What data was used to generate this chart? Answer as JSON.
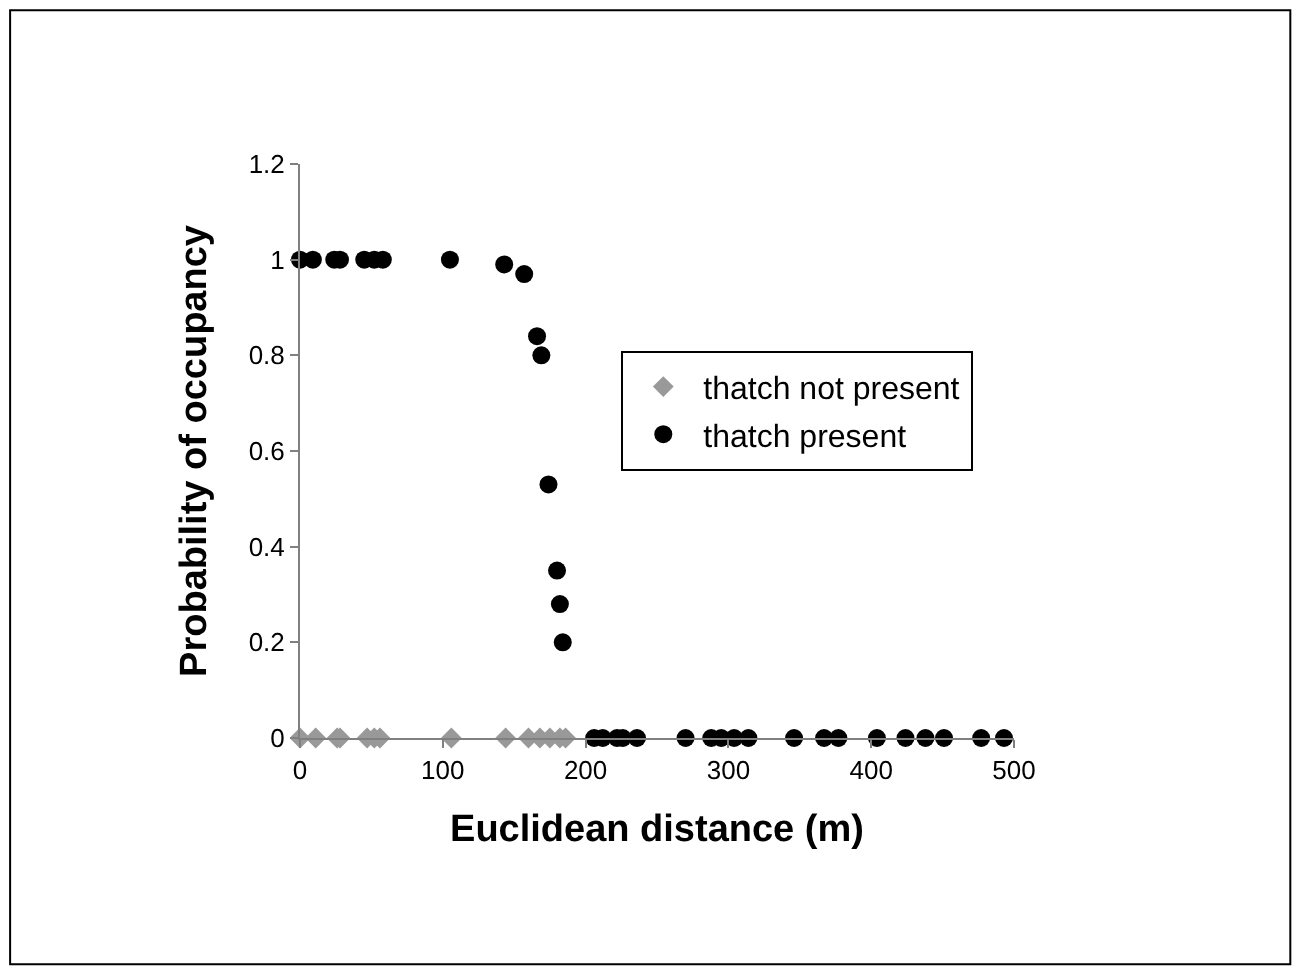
{
  "chart_data": {
    "type": "scatter",
    "xlabel": "Euclidean distance (m)",
    "ylabel": "Probability of occupancy",
    "xlim": [
      0,
      500
    ],
    "xticks": [
      0,
      100,
      200,
      300,
      400,
      500
    ],
    "ylim": [
      0,
      1.2
    ],
    "yticks": [
      0,
      0.2,
      0.4,
      0.6,
      0.8,
      1,
      1.2
    ],
    "legend": "right",
    "series": [
      {
        "name": "thatch not present",
        "color": "#999999",
        "marker": "diamond",
        "x": [
          0,
          11,
          26,
          28,
          47,
          52,
          56,
          106,
          144,
          160,
          168,
          175,
          182,
          186
        ],
        "values": [
          0,
          0,
          0,
          0,
          0,
          0,
          0,
          0,
          0,
          0,
          0,
          0,
          0,
          0
        ]
      },
      {
        "name": "thatch present",
        "color": "#000000",
        "marker": "circle",
        "x": [
          0,
          9,
          24,
          28,
          45,
          52,
          58,
          105,
          143,
          157,
          166,
          169,
          174,
          180,
          182,
          184,
          206,
          212,
          222,
          226,
          236,
          270,
          288,
          295,
          304,
          314,
          346,
          367,
          377,
          404,
          424,
          438,
          451,
          477,
          493
        ],
        "values": [
          1,
          1,
          1,
          1,
          1,
          1,
          1,
          1,
          0.99,
          0.97,
          0.84,
          0.8,
          0.53,
          0.35,
          0.28,
          0.2,
          0,
          0,
          0,
          0,
          0,
          0,
          0,
          0,
          0,
          0,
          0,
          0,
          0,
          0,
          0,
          0,
          0,
          0,
          0
        ]
      }
    ]
  }
}
